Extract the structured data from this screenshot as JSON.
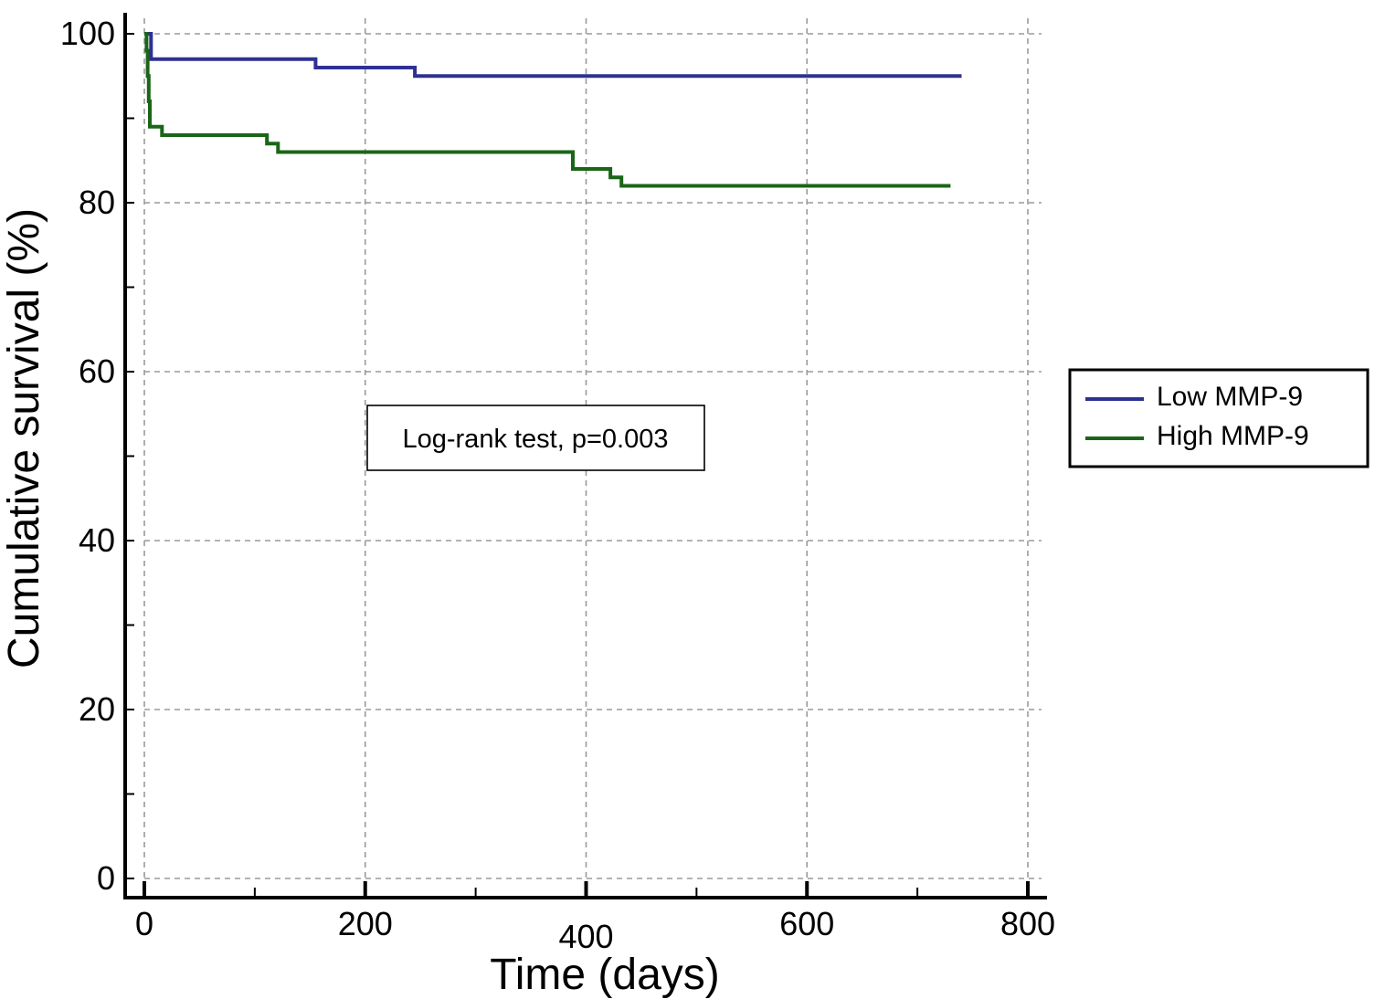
{
  "chart_data": {
    "type": "line",
    "title": "",
    "xlabel": "Time (days)",
    "ylabel": "Cumulative survival (%)",
    "xlim": [
      0,
      800
    ],
    "ylim": [
      0,
      100
    ],
    "x_ticks": [
      0,
      200,
      400,
      600,
      800
    ],
    "x_tick_labels": [
      "0",
      "200",
      "400",
      "600",
      "800"
    ],
    "y_ticks": [
      0,
      20,
      40,
      60,
      80,
      100
    ],
    "y_tick_labels": [
      "0",
      "20",
      "40",
      "60",
      "80",
      "100"
    ],
    "grid": true,
    "step": true,
    "legend_position": "right",
    "annotation": "Log-rank test, p=0.003",
    "series": [
      {
        "name": "Low MMP-9",
        "color": "#2e3192",
        "points": [
          [
            0,
            100
          ],
          [
            6,
            100
          ],
          [
            6,
            97
          ],
          [
            155,
            97
          ],
          [
            155,
            96
          ],
          [
            245,
            96
          ],
          [
            245,
            95
          ],
          [
            740,
            95
          ]
        ]
      },
      {
        "name": "High MMP-9",
        "color": "#1a6618",
        "points": [
          [
            0,
            100
          ],
          [
            2,
            100
          ],
          [
            2,
            98
          ],
          [
            3,
            98
          ],
          [
            3,
            95
          ],
          [
            4,
            95
          ],
          [
            4,
            92
          ],
          [
            5,
            92
          ],
          [
            5,
            89
          ],
          [
            16,
            89
          ],
          [
            16,
            88
          ],
          [
            111,
            88
          ],
          [
            111,
            87
          ],
          [
            121,
            87
          ],
          [
            121,
            86
          ],
          [
            388,
            86
          ],
          [
            388,
            84
          ],
          [
            422,
            84
          ],
          [
            422,
            83
          ],
          [
            432,
            83
          ],
          [
            432,
            82
          ],
          [
            730,
            82
          ]
        ]
      }
    ]
  }
}
